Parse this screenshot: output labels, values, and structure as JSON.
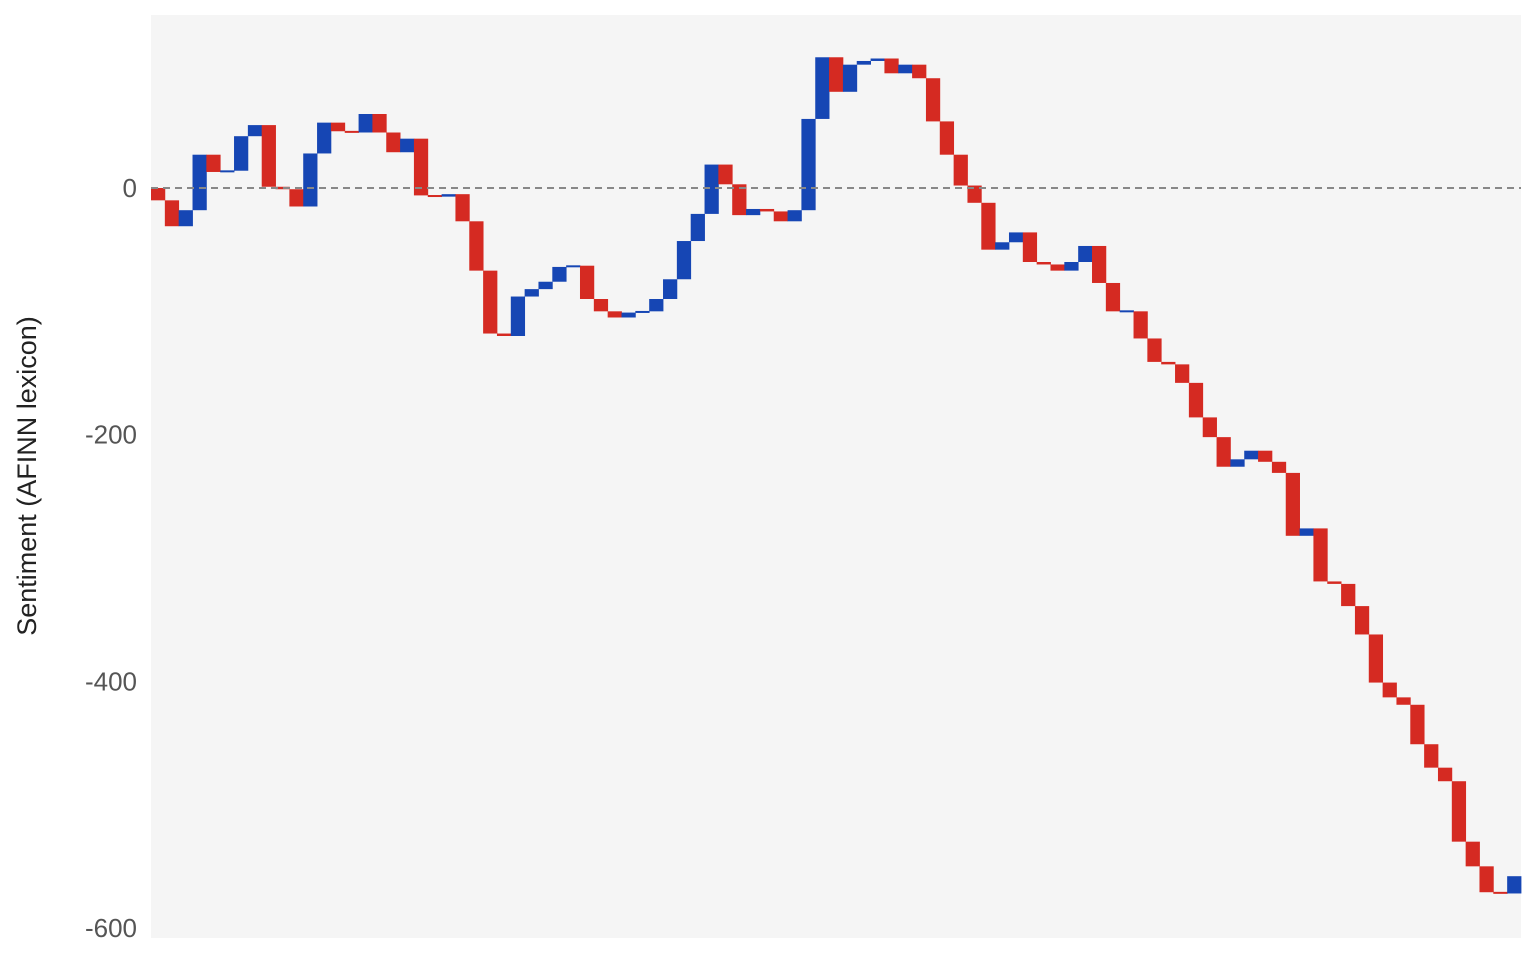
{
  "chart_data": {
    "type": "waterfall",
    "title": "",
    "xlabel": "",
    "ylabel": "Sentiment (AFINN lexicon)",
    "ylim": [
      -600,
      142
    ],
    "yticks": [
      0,
      -200,
      -400,
      -600
    ],
    "ytick_labels": [
      "0",
      "-200",
      "-400",
      "-600"
    ],
    "reference_line": {
      "y": 0,
      "style": "dashed"
    },
    "grid": false,
    "legend": "none",
    "colors": {
      "positive": "#1646b4",
      "negative": "#d52a22",
      "background": "#f5f5f5",
      "reference_line": "#888888",
      "axis_text": "#555555"
    },
    "cumulative": [
      -10,
      -31,
      -18,
      27,
      13,
      14,
      42,
      51,
      1,
      -1,
      -15,
      28,
      53,
      46,
      45,
      60,
      45,
      29,
      40,
      -6,
      -7,
      -5,
      -27,
      -67,
      -118,
      -120,
      -88,
      -82,
      -76,
      -64,
      -63,
      -90,
      -100,
      -105,
      -101,
      -100,
      -90,
      -74,
      -43,
      -21,
      19,
      3,
      -22,
      -17,
      -19,
      -27,
      -18,
      56,
      106,
      78,
      100,
      103,
      105,
      93,
      100,
      89,
      54,
      27,
      2,
      -12,
      -50,
      -44,
      -36,
      -60,
      -62,
      -67,
      -60,
      -47,
      -77,
      -100,
      -100,
      -122,
      -141,
      -143,
      -158,
      -186,
      -202,
      -226,
      -220,
      -213,
      -222,
      -231,
      -282,
      -276,
      -319,
      -321,
      -339,
      -362,
      -401,
      -413,
      -419,
      -451,
      -470,
      -481,
      -530,
      -550,
      -571,
      -572,
      -558
    ]
  }
}
